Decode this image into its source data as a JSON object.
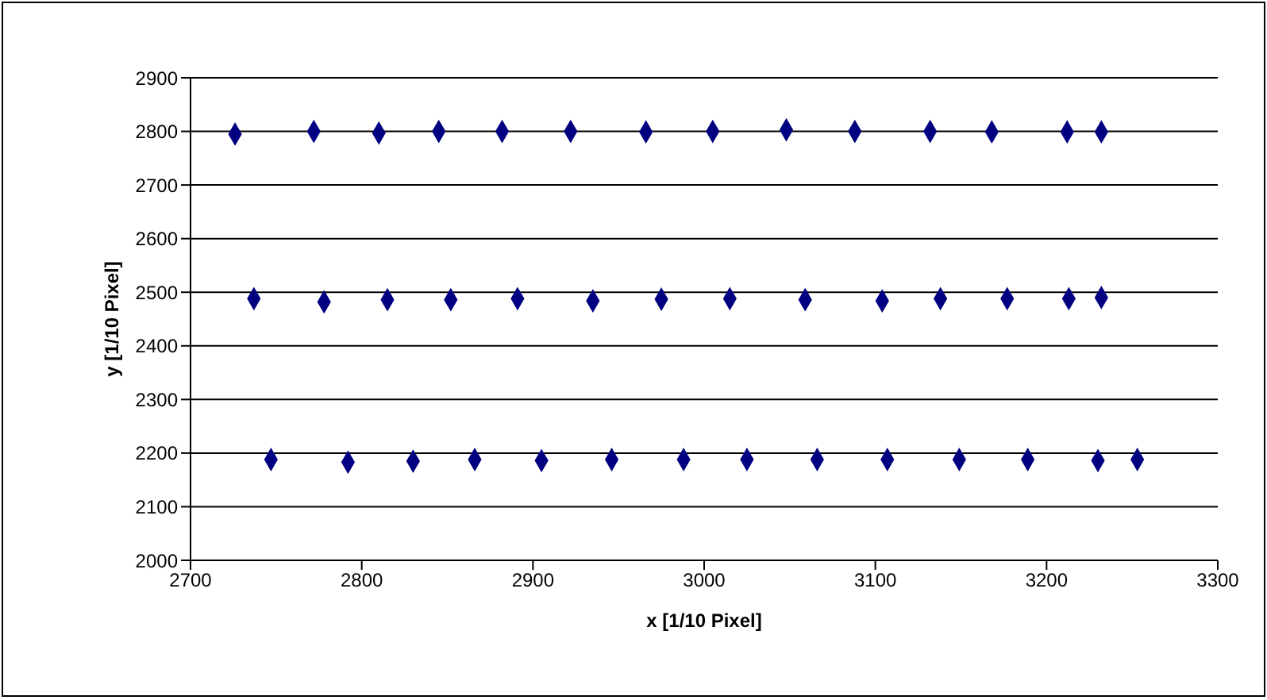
{
  "chart_data": {
    "type": "scatter",
    "xlabel": "x [1/10 Pixel]",
    "ylabel": "y [1/10 Pixel]",
    "x": [
      2726,
      2772,
      2810,
      2845,
      2882,
      2922,
      2966,
      3005,
      3048,
      3088,
      3132,
      3168,
      3212,
      3232,
      2737,
      2778,
      2815,
      2852,
      2891,
      2935,
      2975,
      3015,
      3059,
      3104,
      3138,
      3177,
      3213,
      3232,
      2747,
      2792,
      2830,
      2866,
      2905,
      2946,
      2988,
      3025,
      3066,
      3107,
      3149,
      3189,
      3230,
      3253
    ],
    "series": [
      {
        "color": "#000080",
        "values": [
          2795,
          2800,
          2797,
          2800,
          2800,
          2800,
          2799,
          2800,
          2803,
          2800,
          2800,
          2799,
          2799,
          2799,
          2488,
          2482,
          2486,
          2486,
          2488,
          2484,
          2487,
          2488,
          2486,
          2484,
          2488,
          2488,
          2488,
          2490,
          2188,
          2183,
          2185,
          2188,
          2186,
          2188,
          2188,
          2188,
          2188,
          2188,
          2188,
          2188,
          2186,
          2188
        ]
      }
    ],
    "xlim": [
      2700,
      3300
    ],
    "xticks": [
      2700,
      2800,
      2900,
      3000,
      3100,
      3200,
      3300
    ],
    "ylim": [
      2000,
      2900
    ],
    "yticks": [
      2000,
      2100,
      2200,
      2300,
      2400,
      2500,
      2600,
      2700,
      2800,
      2900
    ],
    "grid": "y",
    "legend": false,
    "marker": "diamond"
  }
}
